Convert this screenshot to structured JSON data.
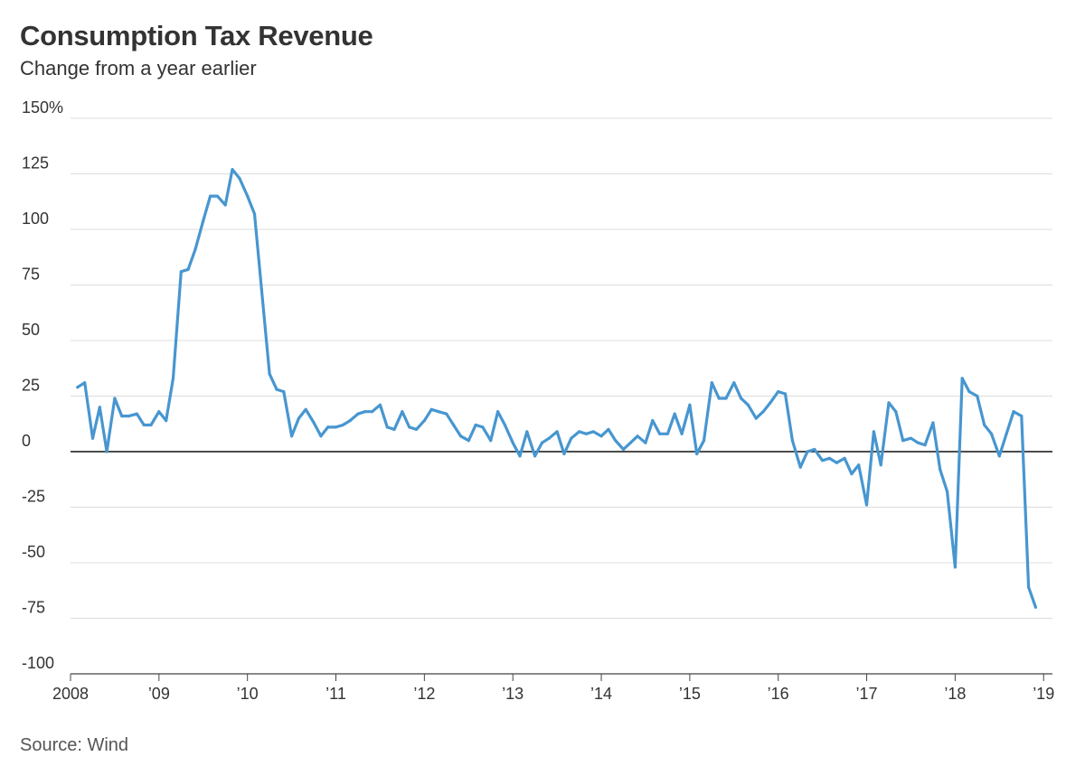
{
  "chart_data": {
    "type": "line",
    "title": "Consumption Tax Revenue",
    "subtitle": "Change from a year earlier",
    "source": "Source: Wind",
    "ylim": [
      -100,
      150
    ],
    "y_ticks": [
      150,
      125,
      100,
      75,
      50,
      25,
      0,
      -25,
      -50,
      -75,
      -100
    ],
    "y_tick_labels": [
      "150%",
      "125",
      "100",
      "75",
      "50",
      "25",
      "0",
      "-25",
      "-50",
      "-75",
      "-100"
    ],
    "x_tick_labels": [
      "2008",
      "’09",
      "’10",
      "’11",
      "’12",
      "’13",
      "’14",
      "’15",
      "’16",
      "’17",
      "’18",
      "’19"
    ],
    "x_tick_years": [
      2008,
      2009,
      2010,
      2011,
      2012,
      2013,
      2014,
      2015,
      2016,
      2017,
      2018,
      2019
    ],
    "xlim": [
      2008,
      2019.1
    ],
    "grid": true,
    "line_color": "#4796d0",
    "series": [
      {
        "points": [
          [
            2008.08,
            29
          ],
          [
            2008.16,
            31
          ],
          [
            2008.25,
            6
          ],
          [
            2008.33,
            20
          ],
          [
            2008.41,
            0
          ],
          [
            2008.5,
            24
          ],
          [
            2008.58,
            16
          ],
          [
            2008.66,
            16
          ],
          [
            2008.75,
            17
          ],
          [
            2008.83,
            12
          ],
          [
            2008.91,
            12
          ],
          [
            2009.0,
            18
          ],
          [
            2009.08,
            14
          ],
          [
            2009.16,
            33
          ],
          [
            2009.25,
            81
          ],
          [
            2009.33,
            82
          ],
          [
            2009.41,
            91
          ],
          [
            2009.5,
            104
          ],
          [
            2009.58,
            115
          ],
          [
            2009.66,
            115
          ],
          [
            2009.75,
            111
          ],
          [
            2009.83,
            127
          ],
          [
            2009.91,
            123
          ],
          [
            2010.0,
            115
          ],
          [
            2010.08,
            107
          ],
          [
            2010.16,
            73
          ],
          [
            2010.25,
            35
          ],
          [
            2010.33,
            28
          ],
          [
            2010.41,
            27
          ],
          [
            2010.5,
            7
          ],
          [
            2010.58,
            15
          ],
          [
            2010.66,
            19
          ],
          [
            2010.75,
            13
          ],
          [
            2010.83,
            7
          ],
          [
            2010.91,
            11
          ],
          [
            2011.0,
            11
          ],
          [
            2011.08,
            12
          ],
          [
            2011.16,
            14
          ],
          [
            2011.25,
            17
          ],
          [
            2011.33,
            18
          ],
          [
            2011.41,
            18
          ],
          [
            2011.5,
            21
          ],
          [
            2011.58,
            11
          ],
          [
            2011.66,
            10
          ],
          [
            2011.75,
            18
          ],
          [
            2011.83,
            11
          ],
          [
            2011.91,
            10
          ],
          [
            2012.0,
            14
          ],
          [
            2012.08,
            19
          ],
          [
            2012.16,
            18
          ],
          [
            2012.25,
            17
          ],
          [
            2012.33,
            12
          ],
          [
            2012.41,
            7
          ],
          [
            2012.5,
            5
          ],
          [
            2012.58,
            12
          ],
          [
            2012.66,
            11
          ],
          [
            2012.75,
            5
          ],
          [
            2012.83,
            18
          ],
          [
            2012.91,
            12
          ],
          [
            2013.0,
            4
          ],
          [
            2013.08,
            -2
          ],
          [
            2013.16,
            9
          ],
          [
            2013.25,
            -2
          ],
          [
            2013.33,
            4
          ],
          [
            2013.41,
            6
          ],
          [
            2013.5,
            9
          ],
          [
            2013.58,
            -1
          ],
          [
            2013.66,
            6
          ],
          [
            2013.75,
            9
          ],
          [
            2013.83,
            8
          ],
          [
            2013.91,
            9
          ],
          [
            2014.0,
            7
          ],
          [
            2014.08,
            10
          ],
          [
            2014.16,
            5
          ],
          [
            2014.25,
            1
          ],
          [
            2014.33,
            4
          ],
          [
            2014.41,
            7
          ],
          [
            2014.5,
            4
          ],
          [
            2014.58,
            14
          ],
          [
            2014.66,
            8
          ],
          [
            2014.75,
            8
          ],
          [
            2014.83,
            17
          ],
          [
            2014.91,
            8
          ],
          [
            2015.0,
            21
          ],
          [
            2015.08,
            -1
          ],
          [
            2015.16,
            5
          ],
          [
            2015.25,
            31
          ],
          [
            2015.33,
            24
          ],
          [
            2015.41,
            24
          ],
          [
            2015.5,
            31
          ],
          [
            2015.58,
            24
          ],
          [
            2015.66,
            21
          ],
          [
            2015.75,
            15
          ],
          [
            2015.83,
            18
          ],
          [
            2015.91,
            22
          ],
          [
            2016.0,
            27
          ],
          [
            2016.08,
            26
          ],
          [
            2016.16,
            5
          ],
          [
            2016.25,
            -7
          ],
          [
            2016.33,
            0
          ],
          [
            2016.41,
            1
          ],
          [
            2016.5,
            -4
          ],
          [
            2016.58,
            -3
          ],
          [
            2016.66,
            -5
          ],
          [
            2016.75,
            -3
          ],
          [
            2016.83,
            -10
          ],
          [
            2016.91,
            -6
          ],
          [
            2017.0,
            -24
          ],
          [
            2017.08,
            9
          ],
          [
            2017.16,
            -6
          ],
          [
            2017.25,
            22
          ],
          [
            2017.33,
            18
          ],
          [
            2017.41,
            5
          ],
          [
            2017.5,
            6
          ],
          [
            2017.58,
            4
          ],
          [
            2017.66,
            3
          ],
          [
            2017.75,
            13
          ],
          [
            2017.83,
            -8
          ],
          [
            2017.91,
            -18
          ],
          [
            2018.0,
            -52
          ],
          [
            2018.08,
            33
          ],
          [
            2018.16,
            27
          ],
          [
            2018.25,
            25
          ],
          [
            2018.33,
            12
          ],
          [
            2018.41,
            8
          ],
          [
            2018.5,
            -2
          ],
          [
            2018.58,
            8
          ],
          [
            2018.66,
            18
          ],
          [
            2018.75,
            16
          ],
          [
            2018.83,
            -61
          ],
          [
            2018.91,
            -70
          ]
        ]
      }
    ]
  }
}
